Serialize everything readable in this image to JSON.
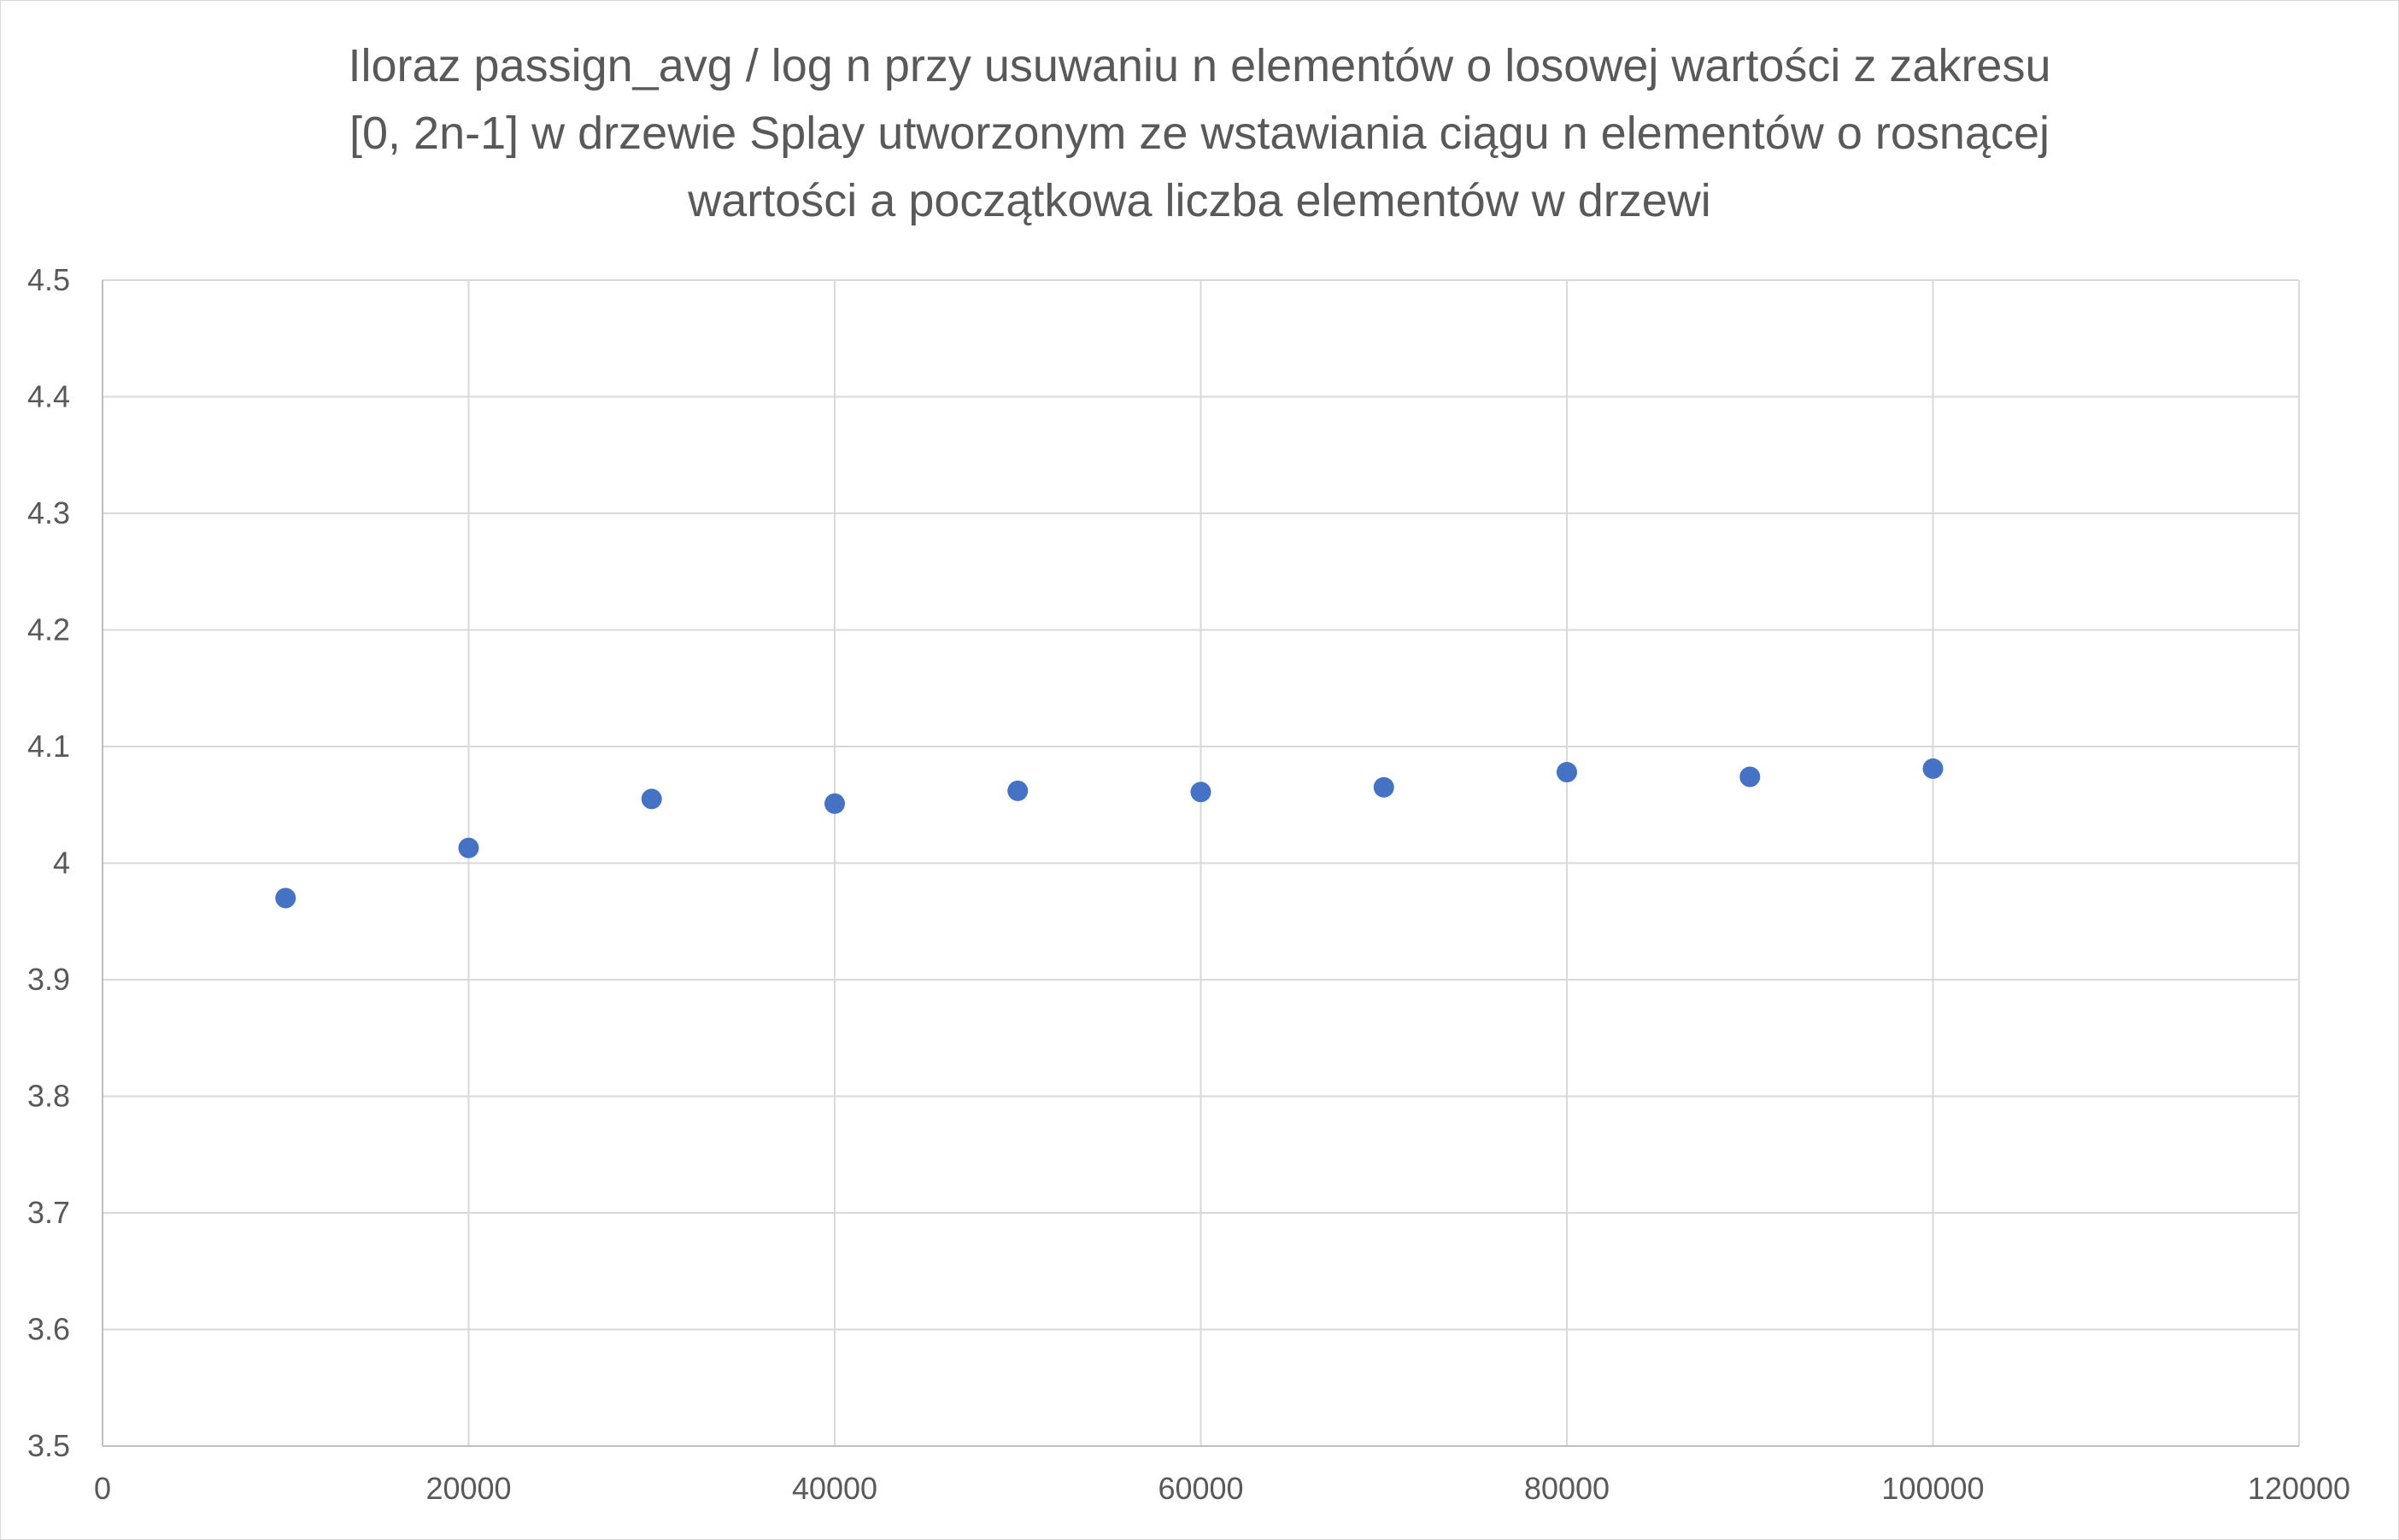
{
  "chart_data": {
    "type": "scatter",
    "title_lines": [
      "Iloraz passign_avg / log n przy usuwaniu n elementów o losowej wartości z zakresu",
      "[0, 2n-1] w drzewie Splay utworzonym ze wstawiania ciągu n elementów o rosnącej",
      "wartości a początkowa liczba elementów w drzewi"
    ],
    "xlabel": "",
    "ylabel": "",
    "xlim": [
      0,
      120000
    ],
    "ylim": [
      3.5,
      4.5
    ],
    "x_ticks": [
      "0",
      "20000",
      "40000",
      "60000",
      "80000",
      "100000",
      "120000"
    ],
    "y_ticks": [
      "3.5",
      "3.6",
      "3.7",
      "3.8",
      "3.9",
      "4",
      "4.1",
      "4.2",
      "4.3",
      "4.4",
      "4.5"
    ],
    "grid": true,
    "legend": "none",
    "series": [
      {
        "color": "#4472c4",
        "points": [
          {
            "x": 10000,
            "y": 3.97
          },
          {
            "x": 20000,
            "y": 4.013
          },
          {
            "x": 30000,
            "y": 4.055
          },
          {
            "x": 40000,
            "y": 4.051
          },
          {
            "x": 50000,
            "y": 4.062
          },
          {
            "x": 60000,
            "y": 4.061
          },
          {
            "x": 70000,
            "y": 4.065
          },
          {
            "x": 80000,
            "y": 4.078
          },
          {
            "x": 90000,
            "y": 4.074
          },
          {
            "x": 100000,
            "y": 4.081
          }
        ]
      }
    ],
    "colors": {
      "gridline": "#d9d9d9",
      "axis": "#bfbfbf",
      "text": "#595959"
    }
  }
}
